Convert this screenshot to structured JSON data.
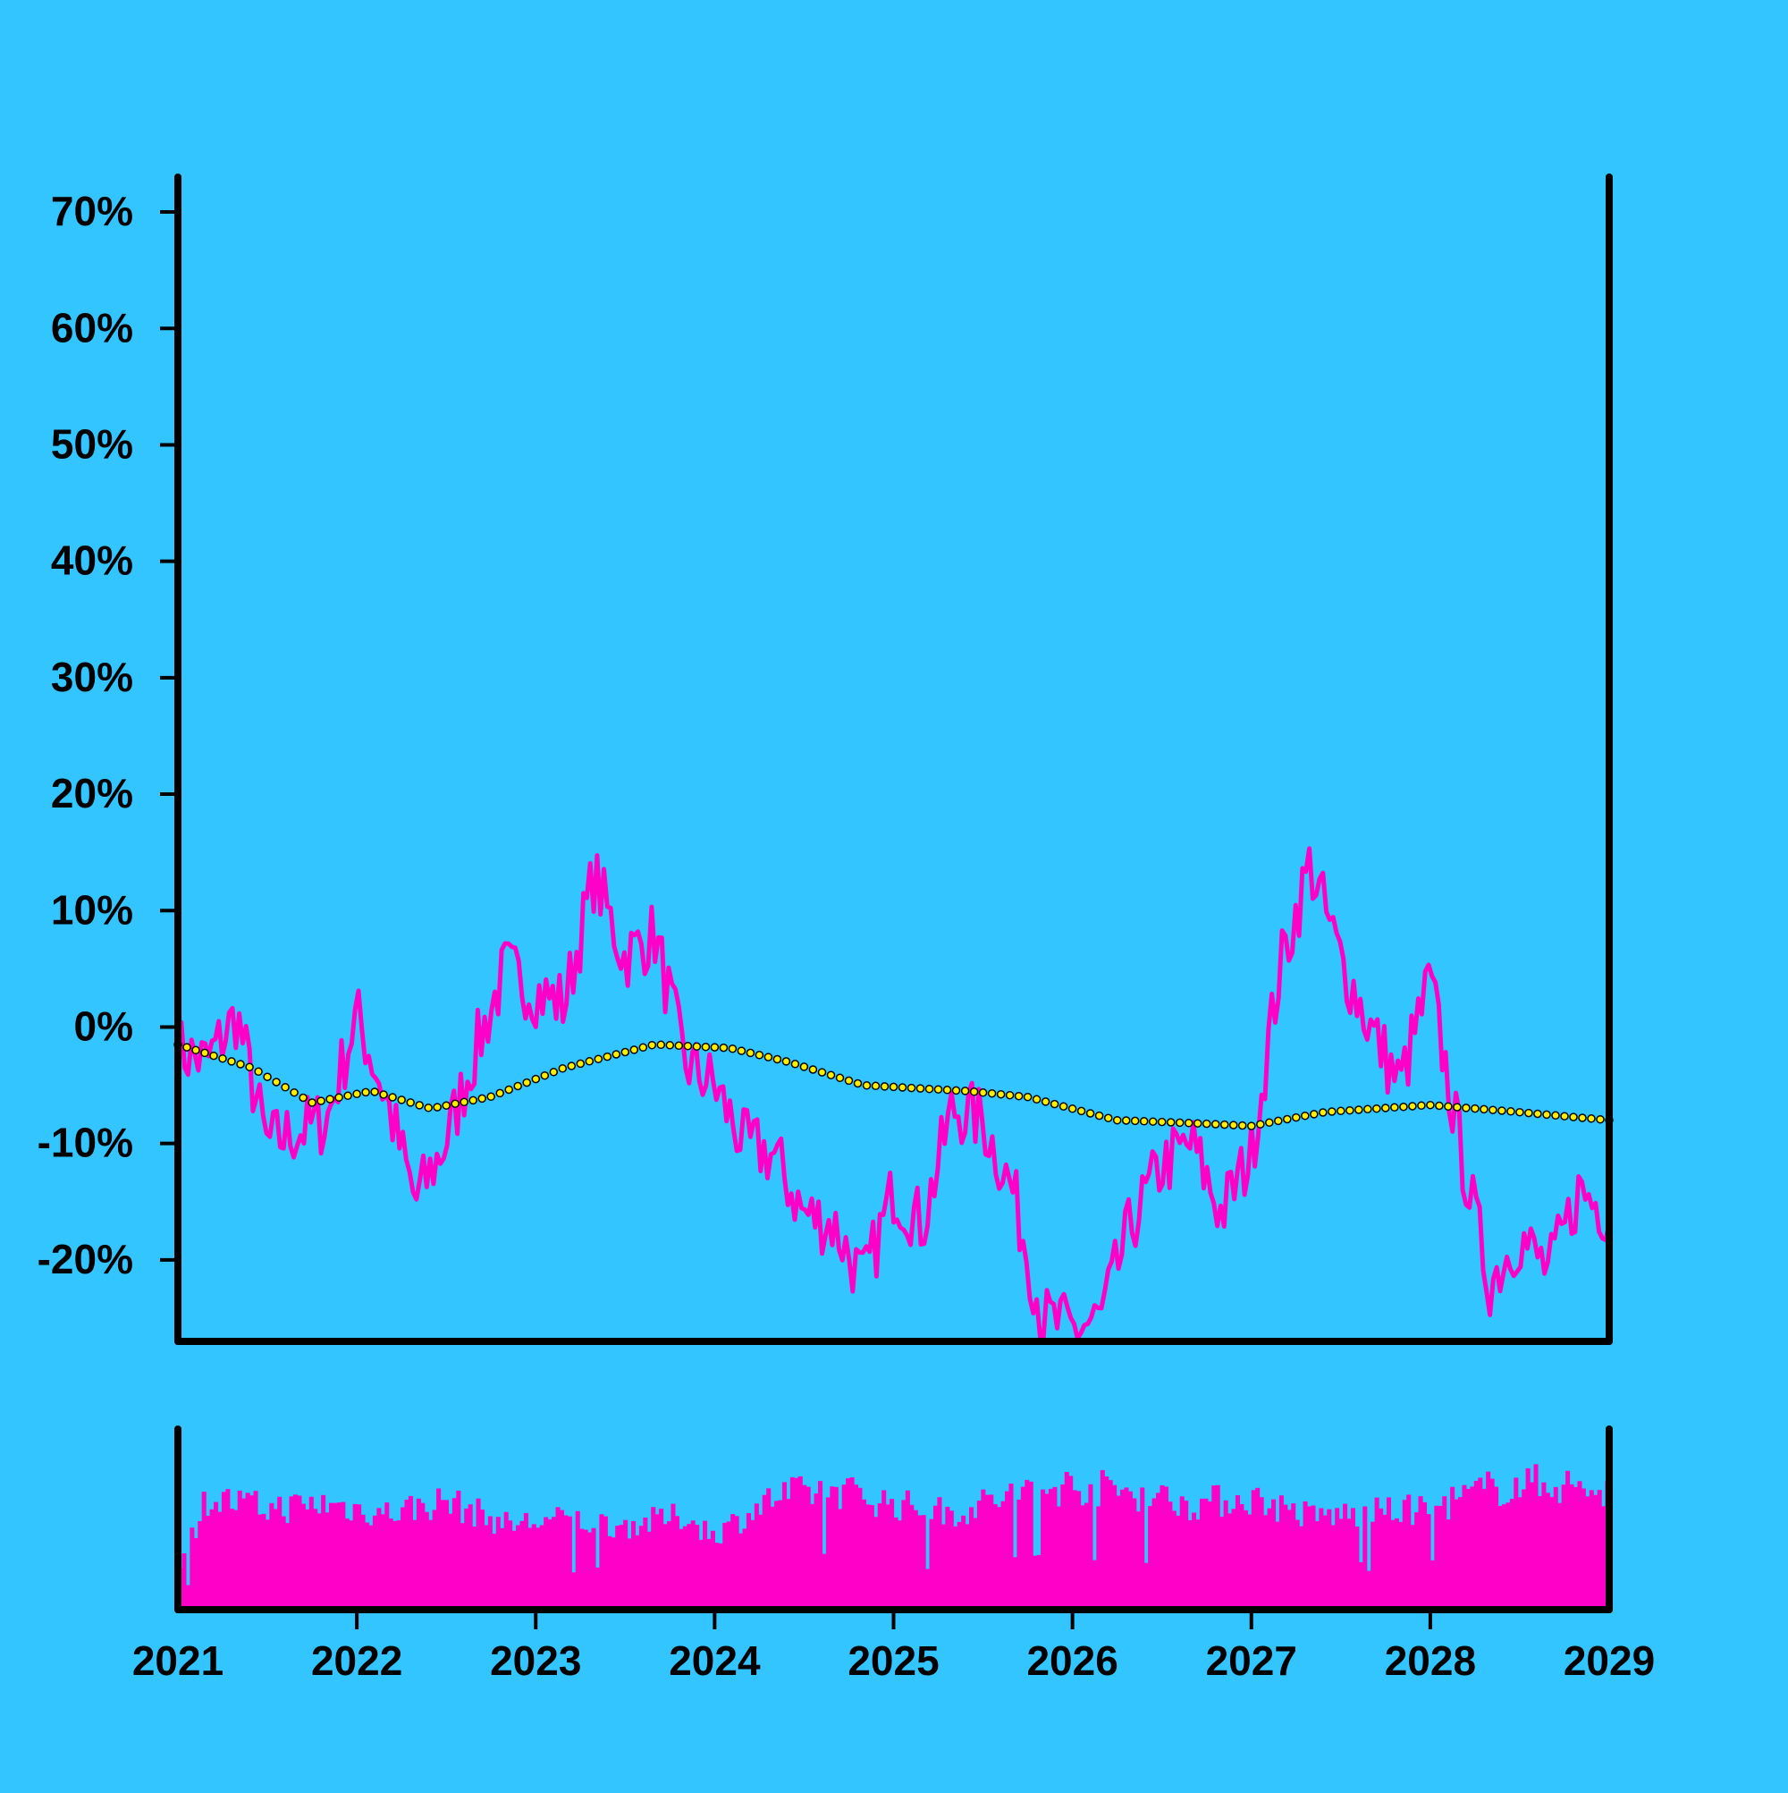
{
  "colors": {
    "background": "#33c5ff",
    "axis": "#000000",
    "line": "#ff00c8",
    "trend_fill": "#ffee00",
    "trend_stroke": "#000000",
    "volume": "#ff00c8"
  },
  "chart_data": [
    {
      "type": "line",
      "title": "",
      "xlabel": "",
      "ylabel": "",
      "y_unit": "%",
      "x_range": [
        "2021-01-01",
        "2029-01-01"
      ],
      "ylim": [
        -27,
        73
      ],
      "x_tick_labels": [
        "2021",
        "2022",
        "2023",
        "2024",
        "2025",
        "2026",
        "2027",
        "2028",
        "2029"
      ],
      "y_tick_labels": [
        "70%",
        "60%",
        "50%",
        "40%",
        "30%",
        "20%",
        "10%",
        "0%",
        "-10%",
        "-20%"
      ],
      "y_tick_values": [
        70,
        60,
        50,
        40,
        30,
        20,
        10,
        0,
        -10,
        -20
      ],
      "grid": false,
      "series": [
        {
          "style": "line",
          "x": [
            "2021-01-01",
            "2021-03-01",
            "2021-05-01",
            "2021-07-01",
            "2021-09-01",
            "2021-11-01",
            "2022-01-01",
            "2022-03-01",
            "2022-05-01",
            "2022-07-01",
            "2022-09-01",
            "2022-11-01",
            "2023-01-01",
            "2023-03-01",
            "2023-05-01",
            "2023-07-01",
            "2023-09-01",
            "2023-11-01",
            "2024-01-01",
            "2024-03-01",
            "2024-05-01",
            "2024-07-01",
            "2024-09-01",
            "2024-11-01",
            "2025-01-01",
            "2025-03-01",
            "2025-05-01",
            "2025-07-01",
            "2025-09-01",
            "2025-11-01",
            "2026-01-01",
            "2026-03-01",
            "2026-05-01",
            "2026-07-01",
            "2026-09-01",
            "2026-11-01",
            "2027-01-01",
            "2027-03-01",
            "2027-05-01",
            "2027-07-01",
            "2027-09-01",
            "2027-11-01",
            "2028-01-01",
            "2028-03-01",
            "2028-05-01",
            "2028-07-01",
            "2028-09-01",
            "2028-11-01",
            "2029-01-01"
          ],
          "values": [
            -2,
            -3,
            1,
            -10,
            -9,
            -8,
            1,
            -6,
            -15,
            -10,
            -2,
            5,
            3,
            2,
            13,
            6,
            8,
            -3,
            -5,
            -10,
            -11,
            -16,
            -17,
            -22,
            -14,
            -17,
            -7,
            -8,
            -14,
            -25,
            -26,
            -25,
            -17,
            -12,
            -10,
            -16,
            -11,
            5,
            14,
            6,
            0,
            -5,
            4,
            -10,
            -22,
            -18,
            -21,
            -14,
            -16
          ]
        },
        {
          "style": "dotted",
          "x": [
            "2021-01-01",
            "2021-06-01",
            "2021-10-01",
            "2022-02-01",
            "2022-06-01",
            "2022-10-01",
            "2023-03-01",
            "2023-09-01",
            "2024-02-01",
            "2024-06-01",
            "2024-11-01",
            "2025-06-01",
            "2025-10-01",
            "2026-04-01",
            "2026-10-01",
            "2027-01-01",
            "2027-06-01",
            "2028-01-01",
            "2028-06-01",
            "2029-01-01"
          ],
          "values": [
            -1.5,
            -3.5,
            -6.5,
            -5.5,
            -7.0,
            -6.0,
            -3.5,
            -1.5,
            -1.8,
            -3.0,
            -5.0,
            -5.5,
            -6.0,
            -8.0,
            -8.3,
            -8.5,
            -7.3,
            -6.7,
            -7.2,
            -8.0
          ]
        }
      ]
    },
    {
      "type": "bar",
      "title": "",
      "xlabel": "",
      "ylabel": "",
      "x_range": [
        "2021-01-01",
        "2029-01-01"
      ],
      "ylim": [
        0,
        100
      ],
      "envelope": {
        "x": [
          "2021-01-01",
          "2021-03-01",
          "2021-07-01",
          "2021-11-01",
          "2022-03-01",
          "2022-07-01",
          "2022-11-01",
          "2023-03-01",
          "2023-07-01",
          "2023-11-01",
          "2024-01-01",
          "2024-05-01",
          "2024-09-01",
          "2025-01-01",
          "2025-05-01",
          "2025-09-01",
          "2026-01-01",
          "2026-05-01",
          "2026-09-01",
          "2027-01-01",
          "2027-05-01",
          "2027-09-01",
          "2028-01-01",
          "2028-05-01",
          "2028-09-01",
          "2029-01-01"
        ],
        "values": [
          25,
          72,
          65,
          68,
          62,
          70,
          55,
          58,
          54,
          60,
          48,
          72,
          78,
          68,
          62,
          74,
          80,
          76,
          68,
          72,
          60,
          62,
          65,
          78,
          82,
          75
        ]
      }
    }
  ]
}
